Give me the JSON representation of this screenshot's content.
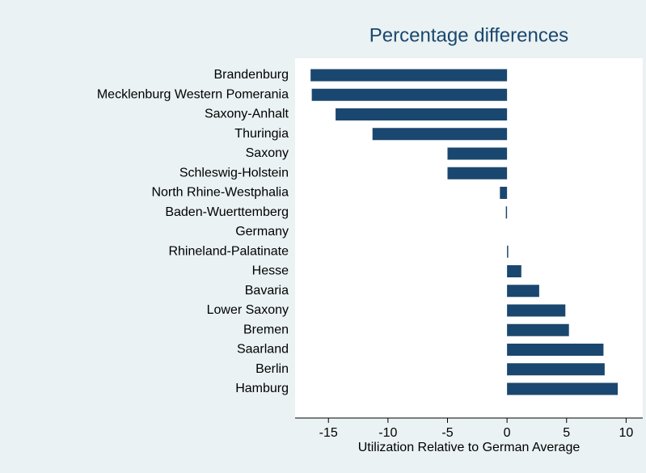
{
  "chart_data": {
    "type": "bar",
    "orientation": "horizontal",
    "title": "Percentage differences",
    "x_label": "Utilization Relative to German Average",
    "categories": [
      "Brandenburg",
      "Mecklenburg Western Pomerania",
      "Saxony-Anhalt",
      "Thuringia",
      "Saxony",
      "Schleswig-Holstein",
      "North Rhine-Westphalia",
      "Baden-Wuerttemberg",
      "Germany",
      "Rhineland-Palatinate",
      "Hesse",
      "Bavaria",
      "Lower Saxony",
      "Bremen",
      "Saarland",
      "Berlin",
      "Hamburg"
    ],
    "values": [
      -16.5,
      -16.4,
      -14.4,
      -11.3,
      -5.0,
      -5.0,
      -0.6,
      -0.1,
      0,
      0.1,
      1.2,
      2.7,
      4.9,
      5.2,
      8.1,
      8.2,
      9.3
    ],
    "color": "#1a476f",
    "xlim": [
      -17.8,
      11.4
    ],
    "xticks": [
      -15,
      -10,
      -5,
      0,
      5,
      10
    ],
    "grid": false
  }
}
